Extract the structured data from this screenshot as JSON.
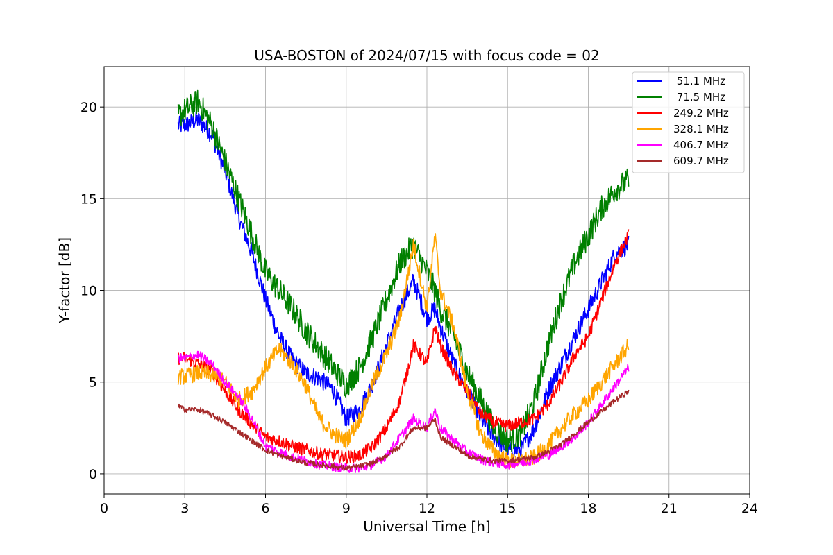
{
  "chart_data": {
    "type": "line",
    "title": "USA-BOSTON of 2024/07/15 with focus code = 02",
    "xlabel": "Universal Time [h]",
    "ylabel": "Y-factor [dB]",
    "xlim": [
      0,
      24
    ],
    "ylim": [
      -1.1,
      22.2
    ],
    "xticks": [
      0,
      3,
      6,
      9,
      12,
      15,
      18,
      21,
      24
    ],
    "yticks": [
      0,
      5,
      10,
      15,
      20
    ],
    "grid": true,
    "legend_position": "top-right",
    "x": [
      2.75,
      3.0,
      3.5,
      4.0,
      4.5,
      5.0,
      5.5,
      6.0,
      6.5,
      7.0,
      7.5,
      8.0,
      8.5,
      9.0,
      9.5,
      10.0,
      10.5,
      11.0,
      11.5,
      12.0,
      12.3,
      12.5,
      13.0,
      13.5,
      14.0,
      14.5,
      15.0,
      15.5,
      16.0,
      16.5,
      17.0,
      17.5,
      18.0,
      18.5,
      19.0,
      19.5
    ],
    "series": [
      {
        "name": " 51.1 MHz",
        "color": "#0000ff",
        "noise": 0.5,
        "values": [
          19.0,
          19.0,
          19.3,
          18.5,
          16.5,
          14.0,
          12.0,
          9.5,
          7.5,
          6.2,
          5.5,
          5.2,
          4.6,
          3.0,
          3.5,
          5.0,
          7.0,
          9.0,
          10.5,
          8.5,
          9.0,
          8.0,
          6.0,
          4.5,
          3.0,
          2.0,
          1.3,
          1.3,
          2.5,
          4.5,
          6.0,
          7.5,
          9.0,
          10.5,
          12.0,
          12.5
        ]
      },
      {
        "name": " 71.5 MHz",
        "color": "#008000",
        "noise": 0.7,
        "values": [
          19.5,
          19.8,
          20.3,
          19.0,
          17.0,
          15.0,
          13.0,
          11.0,
          10.0,
          9.0,
          7.8,
          6.8,
          5.8,
          4.8,
          5.8,
          7.5,
          9.5,
          11.5,
          12.5,
          11.0,
          10.0,
          9.0,
          7.5,
          5.5,
          4.0,
          2.5,
          1.8,
          2.2,
          4.0,
          7.0,
          9.5,
          11.5,
          13.0,
          14.5,
          15.5,
          16.0
        ]
      },
      {
        "name": "249.2 MHz",
        "color": "#ff0000",
        "noise": 0.35,
        "values": [
          6.3,
          6.3,
          6.0,
          5.6,
          4.5,
          3.5,
          2.7,
          2.0,
          1.8,
          1.5,
          1.3,
          1.1,
          1.0,
          0.9,
          1.0,
          1.5,
          2.5,
          4.0,
          7.0,
          6.0,
          8.0,
          7.0,
          5.5,
          4.5,
          3.3,
          2.8,
          2.6,
          2.8,
          3.0,
          3.8,
          5.0,
          6.5,
          7.5,
          9.5,
          11.5,
          13.0
        ]
      },
      {
        "name": "328.1 MHz",
        "color": "#ffa500",
        "noise": 0.45,
        "values": [
          5.3,
          5.3,
          5.5,
          5.4,
          5.0,
          4.0,
          4.5,
          5.8,
          6.8,
          6.0,
          4.8,
          3.0,
          2.2,
          1.8,
          3.0,
          5.0,
          6.5,
          8.5,
          12.5,
          9.0,
          13.0,
          10.0,
          8.0,
          4.5,
          2.2,
          1.2,
          0.7,
          0.7,
          0.9,
          1.5,
          2.5,
          3.3,
          4.0,
          5.0,
          6.0,
          7.0
        ]
      },
      {
        "name": "406.7 MHz",
        "color": "#ff00ff",
        "noise": 0.25,
        "values": [
          6.3,
          6.3,
          6.5,
          6.0,
          5.0,
          4.2,
          3.0,
          1.5,
          1.2,
          0.9,
          0.7,
          0.5,
          0.4,
          0.3,
          0.3,
          0.5,
          1.0,
          2.0,
          3.0,
          2.5,
          3.5,
          2.5,
          1.8,
          1.2,
          0.8,
          0.6,
          0.5,
          0.6,
          0.8,
          1.0,
          1.5,
          2.0,
          2.8,
          3.8,
          4.8,
          5.8
        ]
      },
      {
        "name": "609.7 MHz",
        "color": "#a52a2a",
        "noise": 0.15,
        "values": [
          3.7,
          3.5,
          3.5,
          3.2,
          2.8,
          2.3,
          1.8,
          1.3,
          1.0,
          0.8,
          0.6,
          0.5,
          0.4,
          0.3,
          0.4,
          0.6,
          1.0,
          1.5,
          2.5,
          2.5,
          3.0,
          2.0,
          1.5,
          1.0,
          0.8,
          0.7,
          0.7,
          0.8,
          0.9,
          1.2,
          1.6,
          2.2,
          2.8,
          3.4,
          4.0,
          4.5
        ]
      }
    ]
  }
}
